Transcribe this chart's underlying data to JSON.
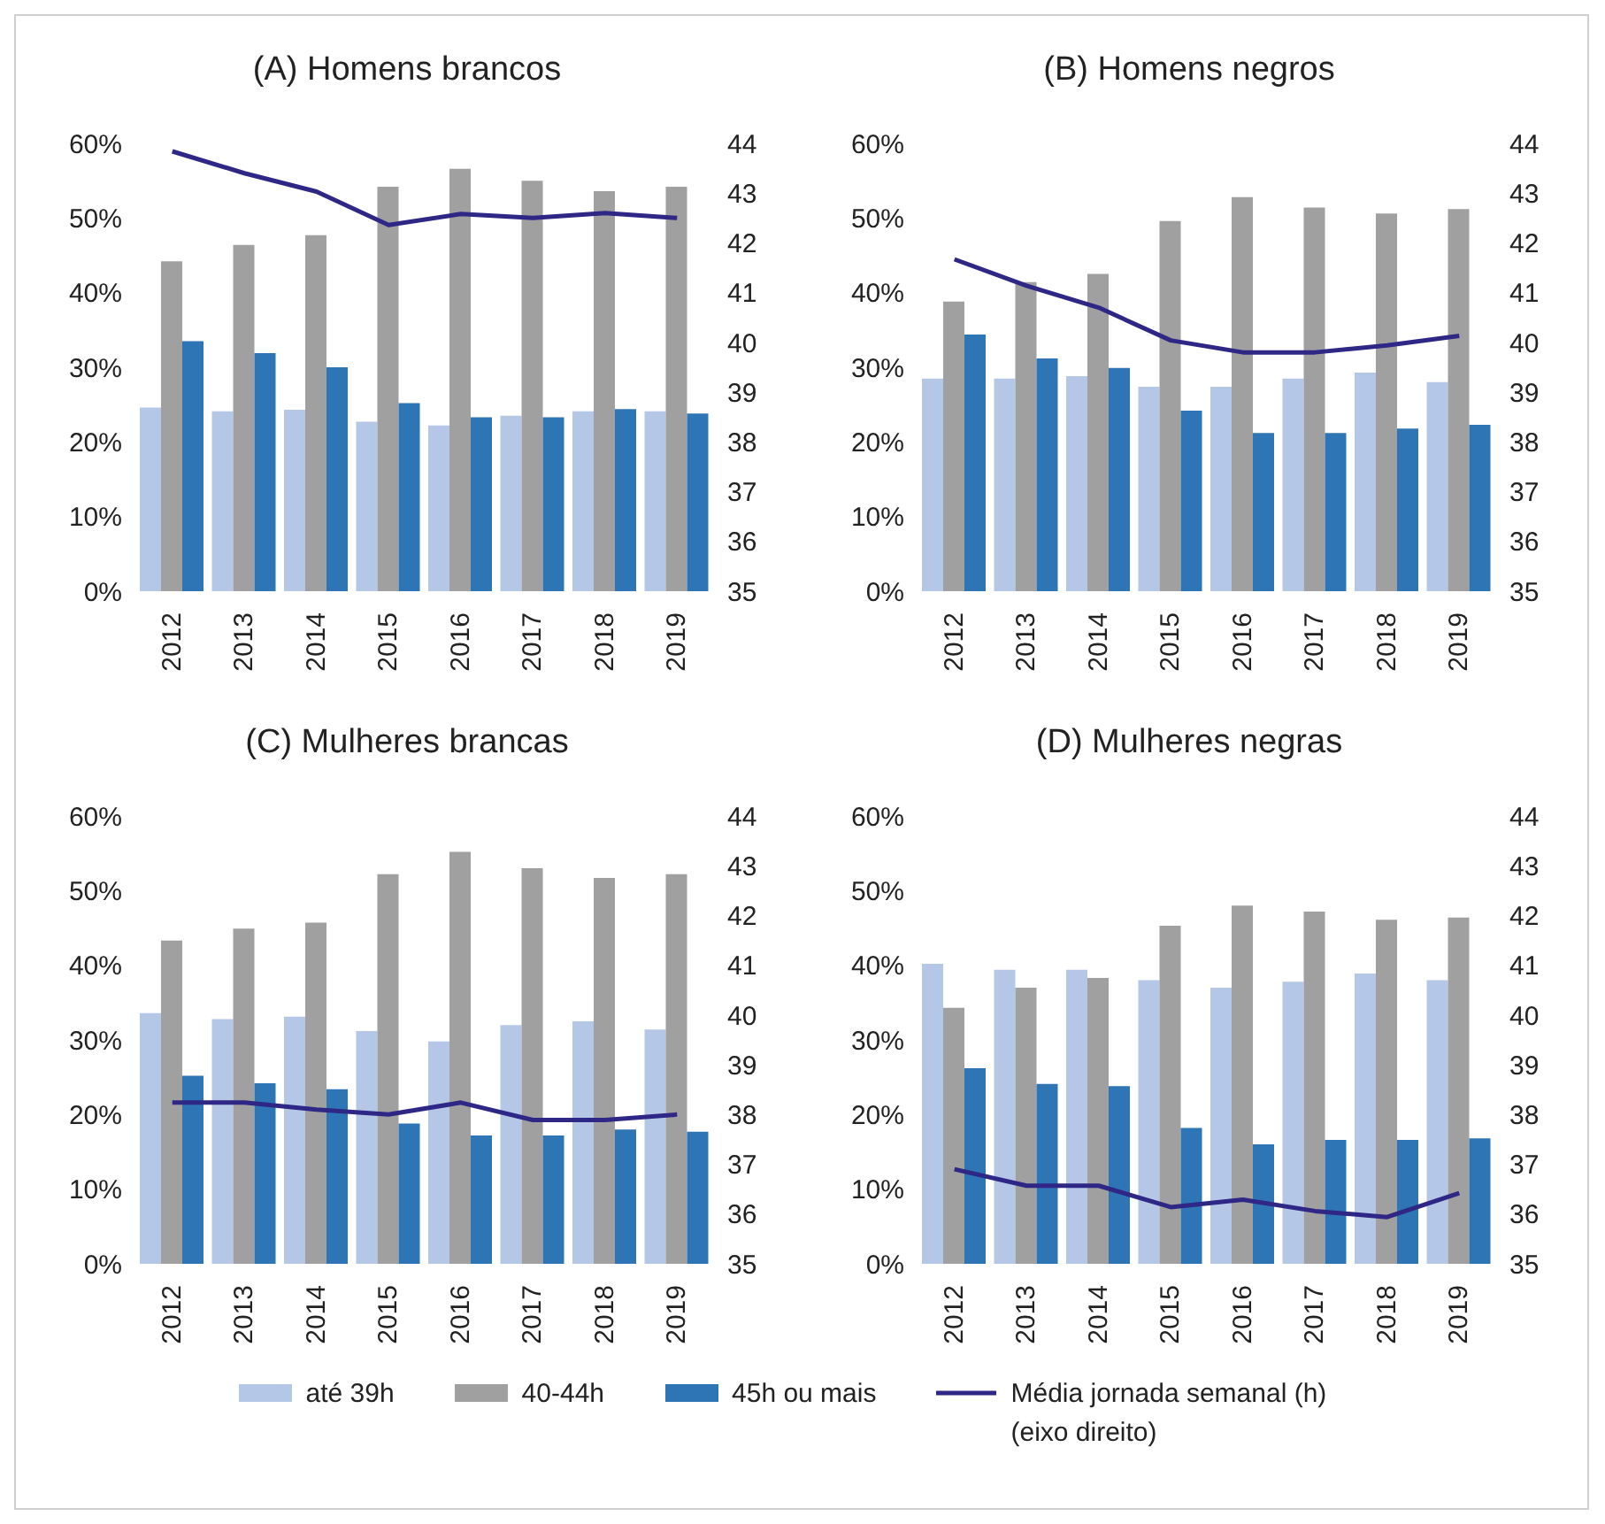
{
  "chart_data": [
    {
      "type": "bar",
      "title": "(A) Homens brancos",
      "categories": [
        "2012",
        "2013",
        "2014",
        "2015",
        "2016",
        "2017",
        "2018",
        "2019"
      ],
      "legend": "bottom",
      "grid": false,
      "series": [
        {
          "name": "até 39h",
          "color": "#b4c7e7",
          "values": [
            24.6,
            24.1,
            24.3,
            22.7,
            22.2,
            23.5,
            24.1,
            24.1
          ]
        },
        {
          "name": "40-44h",
          "color": "#a0a0a0",
          "values": [
            44.2,
            46.4,
            47.7,
            54.2,
            56.6,
            55.0,
            53.6,
            54.2
          ]
        },
        {
          "name": "45h ou mais",
          "color": "#2e75b6",
          "values": [
            33.5,
            31.9,
            30.0,
            25.2,
            23.3,
            23.3,
            24.4,
            23.8
          ]
        },
        {
          "name": "Média jornada semanal (h) (eixo direito)",
          "type": "line",
          "axis": "y2",
          "color": "#2f2785",
          "values": [
            43.84,
            43.4,
            43.03,
            42.36,
            42.58,
            42.5,
            42.6,
            42.5
          ]
        }
      ],
      "ylim": [
        0,
        60
      ],
      "yticks": [
        {
          "value": 0,
          "label": "0%"
        },
        {
          "value": 10,
          "label": "10%"
        },
        {
          "value": 20,
          "label": "20%"
        },
        {
          "value": 30,
          "label": "30%"
        },
        {
          "value": 40,
          "label": "40%"
        },
        {
          "value": 50,
          "label": "50%"
        },
        {
          "value": 60,
          "label": "60%"
        }
      ],
      "y2lim": [
        35,
        44
      ],
      "y2ticks": [
        35,
        36,
        37,
        38,
        39,
        40,
        41,
        42,
        43,
        44
      ]
    },
    {
      "type": "bar",
      "title": "(B) Homens negros",
      "categories": [
        "2012",
        "2013",
        "2014",
        "2015",
        "2016",
        "2017",
        "2018",
        "2019"
      ],
      "grid": false,
      "series": [
        {
          "color": "#b4c7e7",
          "values": [
            28.5,
            28.5,
            28.8,
            27.4,
            27.4,
            28.5,
            29.3,
            28.0
          ]
        },
        {
          "color": "#a0a0a0",
          "values": [
            38.8,
            41.4,
            42.5,
            49.6,
            52.8,
            51.4,
            50.6,
            51.2
          ]
        },
        {
          "color": "#2e75b6",
          "values": [
            34.4,
            31.2,
            29.9,
            24.2,
            21.2,
            21.2,
            21.8,
            22.3
          ]
        },
        {
          "type": "line",
          "axis": "y2",
          "color": "#2f2785",
          "values": [
            41.67,
            41.14,
            40.7,
            40.04,
            39.8,
            39.8,
            39.94,
            40.13
          ]
        }
      ],
      "ylim": [
        0,
        60
      ],
      "yticks": [
        {
          "value": 0,
          "label": "0%"
        },
        {
          "value": 10,
          "label": "10%"
        },
        {
          "value": 20,
          "label": "20%"
        },
        {
          "value": 30,
          "label": "30%"
        },
        {
          "value": 40,
          "label": "40%"
        },
        {
          "value": 50,
          "label": "50%"
        },
        {
          "value": 60,
          "label": "60%"
        }
      ],
      "y2lim": [
        35,
        44
      ],
      "y2ticks": [
        35,
        36,
        37,
        38,
        39,
        40,
        41,
        42,
        43,
        44
      ]
    },
    {
      "type": "bar",
      "title": "(C) Mulheres brancas",
      "categories": [
        "2012",
        "2013",
        "2014",
        "2015",
        "2016",
        "2017",
        "2018",
        "2019"
      ],
      "grid": false,
      "series": [
        {
          "color": "#b4c7e7",
          "values": [
            33.6,
            32.8,
            33.1,
            31.2,
            29.8,
            32.0,
            32.5,
            31.4
          ]
        },
        {
          "color": "#a0a0a0",
          "values": [
            43.3,
            44.9,
            45.7,
            52.2,
            55.2,
            53.0,
            51.7,
            52.2
          ]
        },
        {
          "color": "#2e75b6",
          "values": [
            25.2,
            24.2,
            23.4,
            18.8,
            17.2,
            17.2,
            18.0,
            17.7
          ]
        },
        {
          "type": "line",
          "axis": "y2",
          "color": "#2f2785",
          "values": [
            38.24,
            38.24,
            38.1,
            38.0,
            38.24,
            37.89,
            37.89,
            38.0
          ]
        }
      ],
      "ylim": [
        0,
        60
      ],
      "yticks": [
        {
          "value": 0,
          "label": "0%"
        },
        {
          "value": 10,
          "label": "10%"
        },
        {
          "value": 20,
          "label": "20%"
        },
        {
          "value": 30,
          "label": "30%"
        },
        {
          "value": 40,
          "label": "40%"
        },
        {
          "value": 50,
          "label": "50%"
        },
        {
          "value": 60,
          "label": "60%"
        }
      ],
      "y2lim": [
        35,
        44
      ],
      "y2ticks": [
        35,
        36,
        37,
        38,
        39,
        40,
        41,
        42,
        43,
        44
      ]
    },
    {
      "type": "bar",
      "title": "(D) Mulheres negras",
      "categories": [
        "2012",
        "2013",
        "2014",
        "2015",
        "2016",
        "2017",
        "2018",
        "2019"
      ],
      "grid": false,
      "series": [
        {
          "color": "#b4c7e7",
          "values": [
            40.2,
            39.4,
            39.4,
            38.0,
            37.0,
            37.8,
            38.9,
            38.0
          ]
        },
        {
          "color": "#a0a0a0",
          "values": [
            34.3,
            37.0,
            38.3,
            45.3,
            48.0,
            47.2,
            46.1,
            46.4
          ]
        },
        {
          "color": "#2e75b6",
          "values": [
            26.2,
            24.1,
            23.8,
            18.2,
            16.0,
            16.6,
            16.6,
            16.8
          ]
        },
        {
          "type": "line",
          "axis": "y2",
          "color": "#2f2785",
          "values": [
            36.9,
            36.57,
            36.57,
            36.14,
            36.29,
            36.06,
            35.94,
            36.42
          ]
        }
      ],
      "ylim": [
        0,
        60
      ],
      "yticks": [
        {
          "value": 0,
          "label": "0%"
        },
        {
          "value": 10,
          "label": "10%"
        },
        {
          "value": 20,
          "label": "20%"
        },
        {
          "value": 30,
          "label": "30%"
        },
        {
          "value": 40,
          "label": "40%"
        },
        {
          "value": 50,
          "label": "50%"
        },
        {
          "value": 60,
          "label": "60%"
        }
      ],
      "y2lim": [
        35,
        44
      ],
      "y2ticks": [
        35,
        36,
        37,
        38,
        39,
        40,
        41,
        42,
        43,
        44
      ]
    }
  ]
}
